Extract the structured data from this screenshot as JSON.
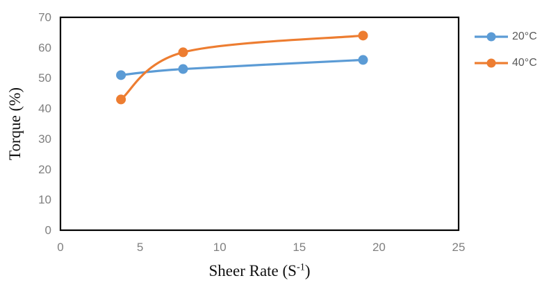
{
  "chart_data": {
    "type": "line",
    "title": "",
    "xlabel": "Sheer Rate (S⁻¹)",
    "xlabel_parts": {
      "pre": "Sheer Rate (S",
      "sup": "-1",
      "post": ")"
    },
    "ylabel": "Torque (%)",
    "x": [
      3.8,
      7.7,
      19
    ],
    "series": [
      {
        "name": "20°C",
        "color": "#5B9BD5",
        "values": [
          51,
          53,
          56
        ]
      },
      {
        "name": "40°C",
        "color": "#ED7D31",
        "values": [
          43,
          58.5,
          64
        ]
      }
    ],
    "xlim": [
      0,
      25
    ],
    "ylim": [
      0,
      70
    ],
    "x_ticks": [
      0,
      5,
      10,
      15,
      20,
      25
    ],
    "y_ticks": [
      0,
      10,
      20,
      30,
      40,
      50,
      60,
      70
    ],
    "grid": false,
    "smooth_lines": true,
    "marker": "circle",
    "legend_position": "right",
    "colors": {
      "plot_border": "#000000",
      "tick_label": "#7f7f7f",
      "axis_title": "#111111",
      "legend_text": "#595959",
      "background": "#ffffff"
    }
  }
}
